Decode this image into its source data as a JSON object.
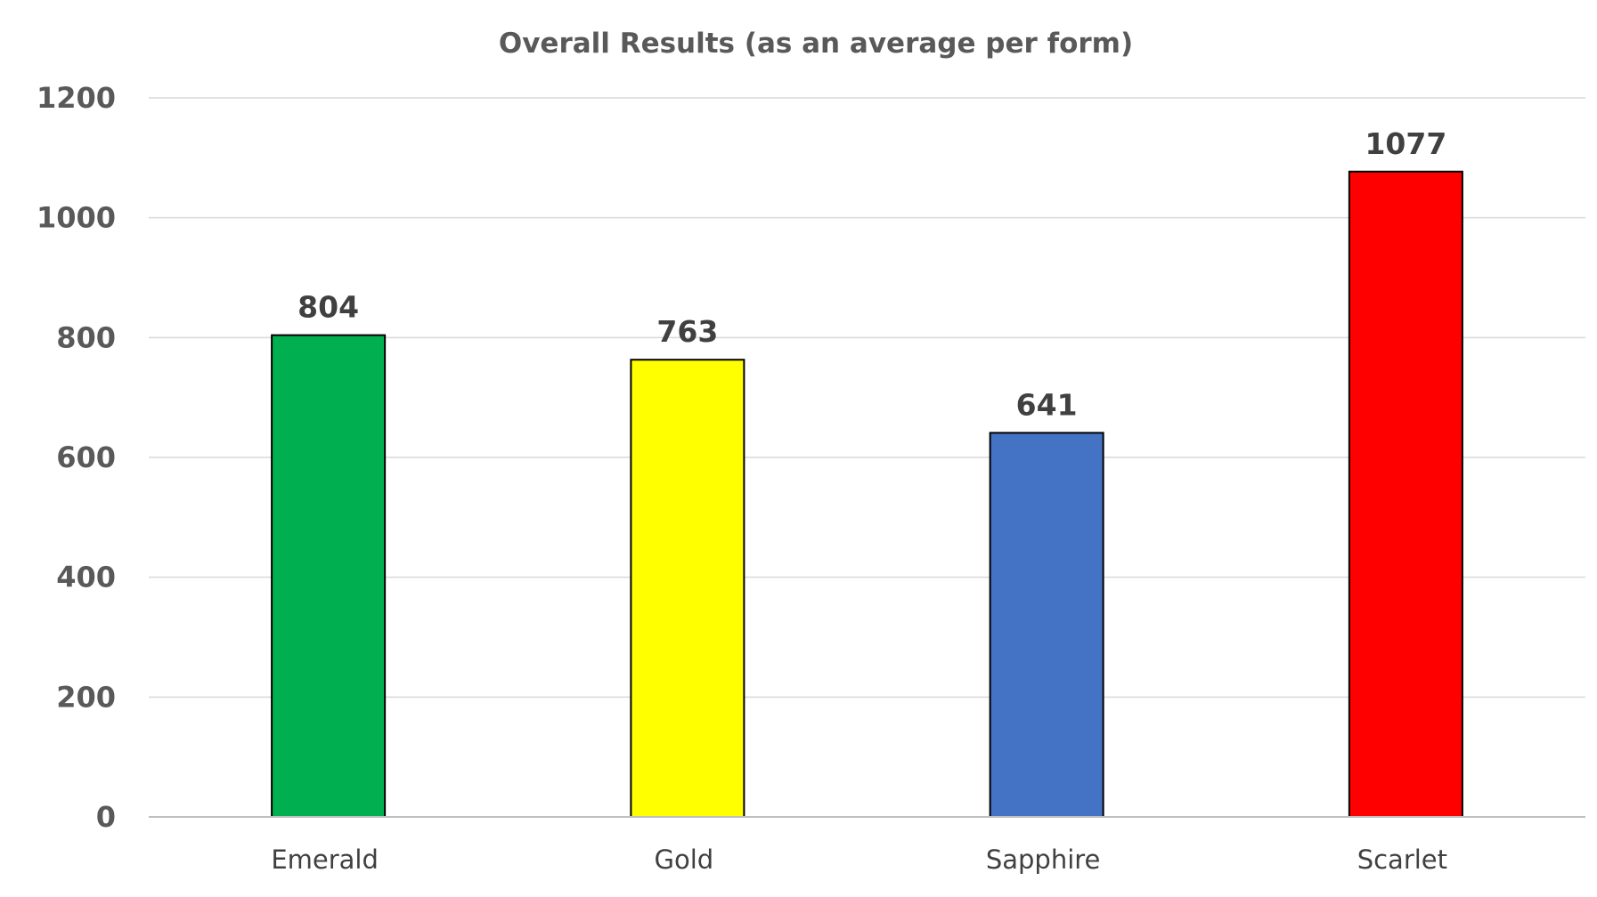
{
  "chart_data": {
    "type": "bar",
    "title": "Overall Results (as an average per form)",
    "xlabel": "",
    "ylabel": "",
    "categories": [
      "Emerald",
      "Gold",
      "Sapphire",
      "Scarlet"
    ],
    "values": [
      804,
      763,
      641,
      1077
    ],
    "data_labels": [
      "804",
      "763",
      "641",
      "1077"
    ],
    "bar_colors": [
      "#00b050",
      "#ffff00",
      "#4472c4",
      "#ff0000"
    ],
    "ylim": [
      0,
      1200
    ],
    "yticks": [
      0,
      200,
      400,
      600,
      800,
      1000,
      1200
    ],
    "ytick_labels": [
      "0",
      "200",
      "400",
      "600",
      "800",
      "1000",
      "1200"
    ],
    "grid": true,
    "legend": "none"
  }
}
